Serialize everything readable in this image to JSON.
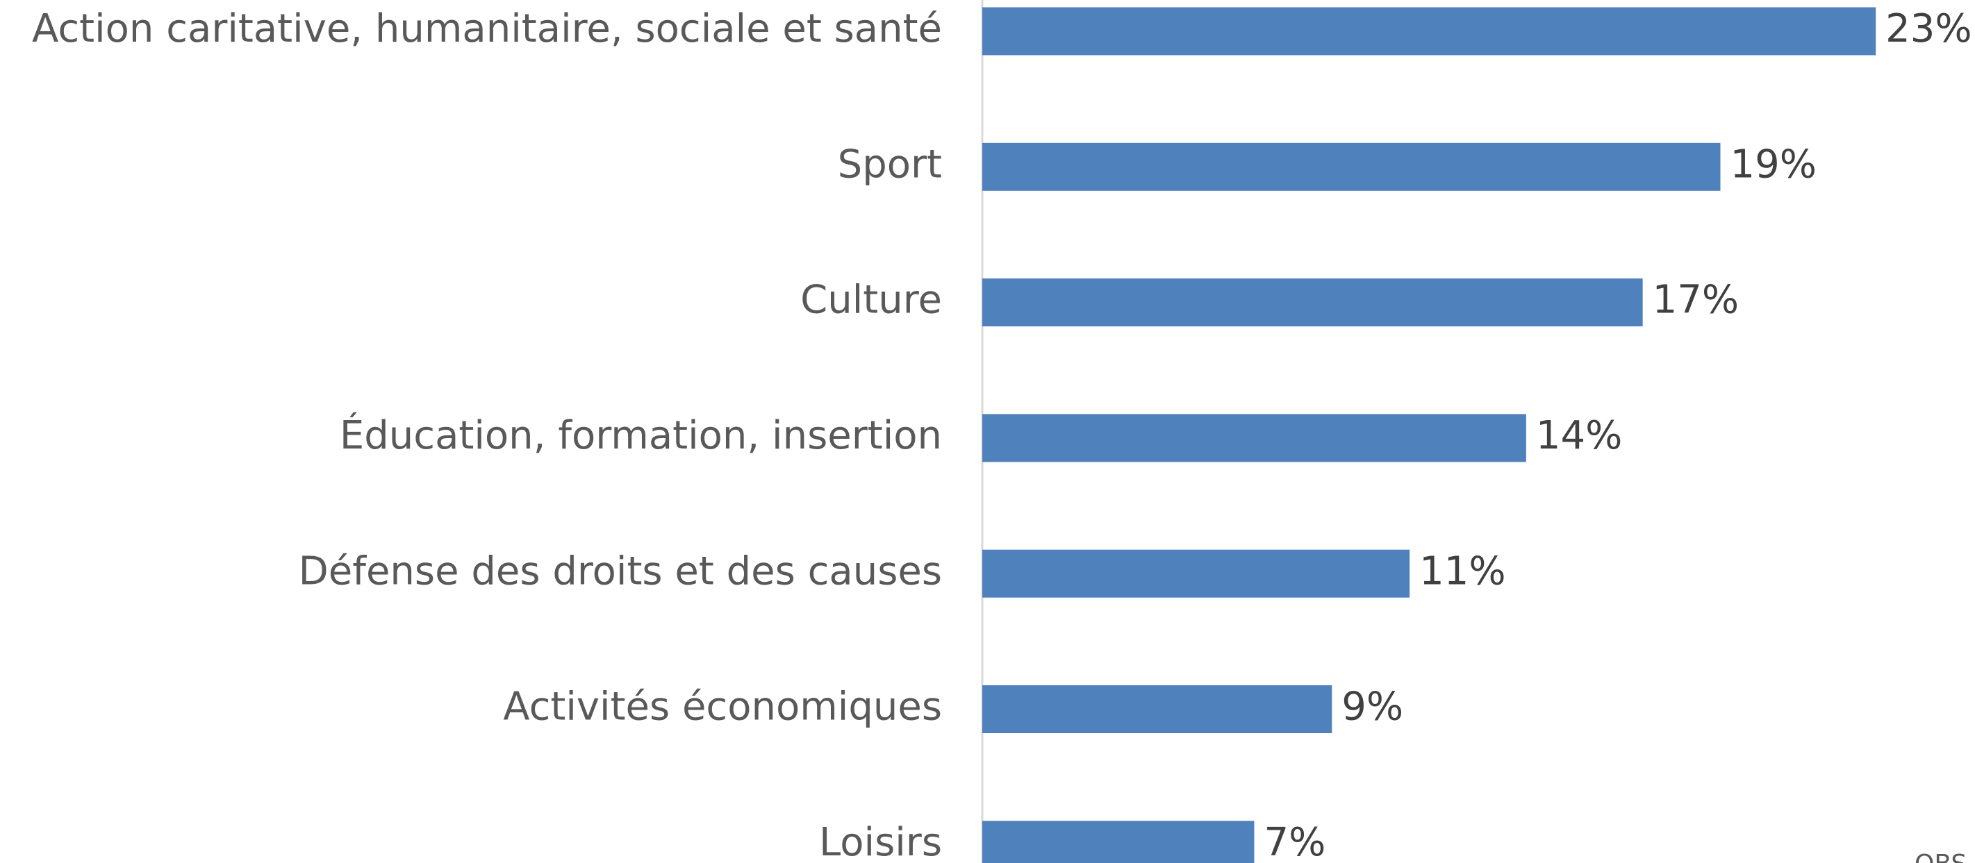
{
  "chart_data": {
    "type": "bar",
    "orientation": "horizontal",
    "categories": [
      "Action caritative, humanitaire, sociale et santé",
      "Sport",
      "Culture",
      "Éducation, formation, insertion",
      "Défense des droits et des causes",
      "Activités économiques",
      "Loisirs"
    ],
    "values": [
      23,
      19,
      17,
      14,
      11,
      9,
      7
    ],
    "value_labels": [
      "23%",
      "19%",
      "17%",
      "14%",
      "11%",
      "9%",
      "7%"
    ],
    "color": "#4f81bd",
    "xlim": [
      0,
      25
    ],
    "source": "OBS"
  }
}
